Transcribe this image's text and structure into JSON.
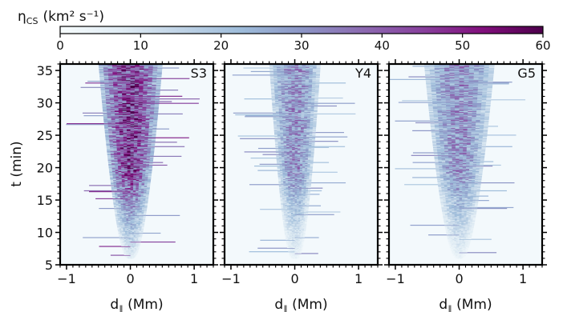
{
  "chart_data": {
    "type": "heatmap",
    "colorbar": {
      "label_main": "η",
      "label_sub": "CS",
      "label_units": "(km² s⁻¹)",
      "range": [
        0,
        60
      ],
      "ticks": [
        "0",
        "10",
        "20",
        "30",
        "40",
        "50",
        "60"
      ],
      "colormap": [
        "#f7fcfd",
        "#e0ecf4",
        "#bfd3e6",
        "#9ebcda",
        "#8c96c6",
        "#8c6bb1",
        "#88419d",
        "#810f7c",
        "#4d004b"
      ]
    },
    "ylabel": "t (min)",
    "ylim": [
      5,
      36
    ],
    "yticks": [
      "5",
      "10",
      "15",
      "20",
      "25",
      "30",
      "35"
    ],
    "panels": [
      {
        "label": "S3",
        "xlabel_main": "d",
        "xlabel_sub": "∥",
        "xlabel_units": " (Mm)",
        "xlim": [
          -1.1,
          1.3
        ],
        "xticks": [
          "−1",
          "0",
          "1"
        ],
        "intensity": 0.82,
        "start_time": 6,
        "halfwidth_top": 0.5,
        "halfwidth_bottom": 0.06
      },
      {
        "label": "Y4",
        "xlabel_main": "d",
        "xlabel_sub": "∥",
        "xlabel_units": " (Mm)",
        "xlim": [
          -1.1,
          1.3
        ],
        "xticks": [
          "−1",
          "0",
          "1"
        ],
        "intensity": 0.55,
        "start_time": 6,
        "halfwidth_top": 0.4,
        "halfwidth_bottom": 0.06
      },
      {
        "label": "G5",
        "xlabel_main": "d",
        "xlabel_sub": "∥",
        "xlabel_units": " (Mm)",
        "xlim": [
          -1.1,
          1.3
        ],
        "xticks": [
          "−1",
          "0",
          "1"
        ],
        "intensity": 0.55,
        "start_time": 6,
        "halfwidth_top": 0.55,
        "halfwidth_bottom": 0.06
      }
    ]
  }
}
